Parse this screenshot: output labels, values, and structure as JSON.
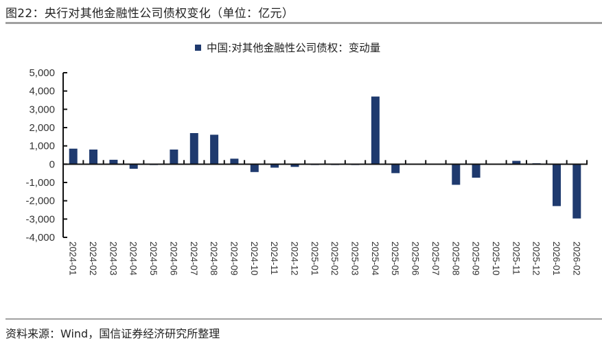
{
  "header": {
    "title": "图22：央行对其他金融性公司债权变化（单位：亿元）"
  },
  "footer": {
    "source": "资料来源：Wind，国信证券经济研究所整理"
  },
  "colors": {
    "bar": "#1f3a6e",
    "axis": "#111111",
    "rule": "#a0a0a0"
  },
  "chart_data": {
    "type": "bar",
    "title": "图22：央行对其他金融性公司债权变化（单位：亿元）",
    "xlabel": "",
    "ylabel": "",
    "legend": [
      "中国:对其他金融性公司债权：变动量"
    ],
    "legend_position": "top",
    "grid": false,
    "ylim": [
      -4000,
      5000
    ],
    "yticks": [
      5000,
      4000,
      3000,
      2000,
      1000,
      0,
      -1000,
      -2000,
      -3000,
      -4000
    ],
    "ytick_labels": [
      "5,000",
      "4,000",
      "3,000",
      "2,000",
      "1,000",
      "0",
      "-1,000",
      "-2,000",
      "-3,000",
      "-4,000"
    ],
    "categories": [
      "2024-01",
      "2024-02",
      "2024-03",
      "2024-04",
      "2024-05",
      "2024-06",
      "2024-07",
      "2024-08",
      "2024-09",
      "2024-10",
      "2024-11",
      "2024-12",
      "2025-01",
      "2025-02",
      "2025-03",
      "2025-04",
      "2025-05",
      "2025-06",
      "2025-07",
      "2025-08",
      "2025-09",
      "2025-10",
      "2025-11",
      "2025-12",
      "2026-01",
      "2026-02"
    ],
    "series": [
      {
        "name": "中国:对其他金融性公司债权：变动量",
        "values": [
          850,
          800,
          240,
          -250,
          -50,
          800,
          1700,
          1610,
          300,
          -430,
          -190,
          -150,
          -50,
          -50,
          -50,
          3700,
          -490,
          0,
          0,
          -1130,
          -740,
          0,
          180,
          50,
          -2290,
          -2970
        ]
      }
    ]
  }
}
